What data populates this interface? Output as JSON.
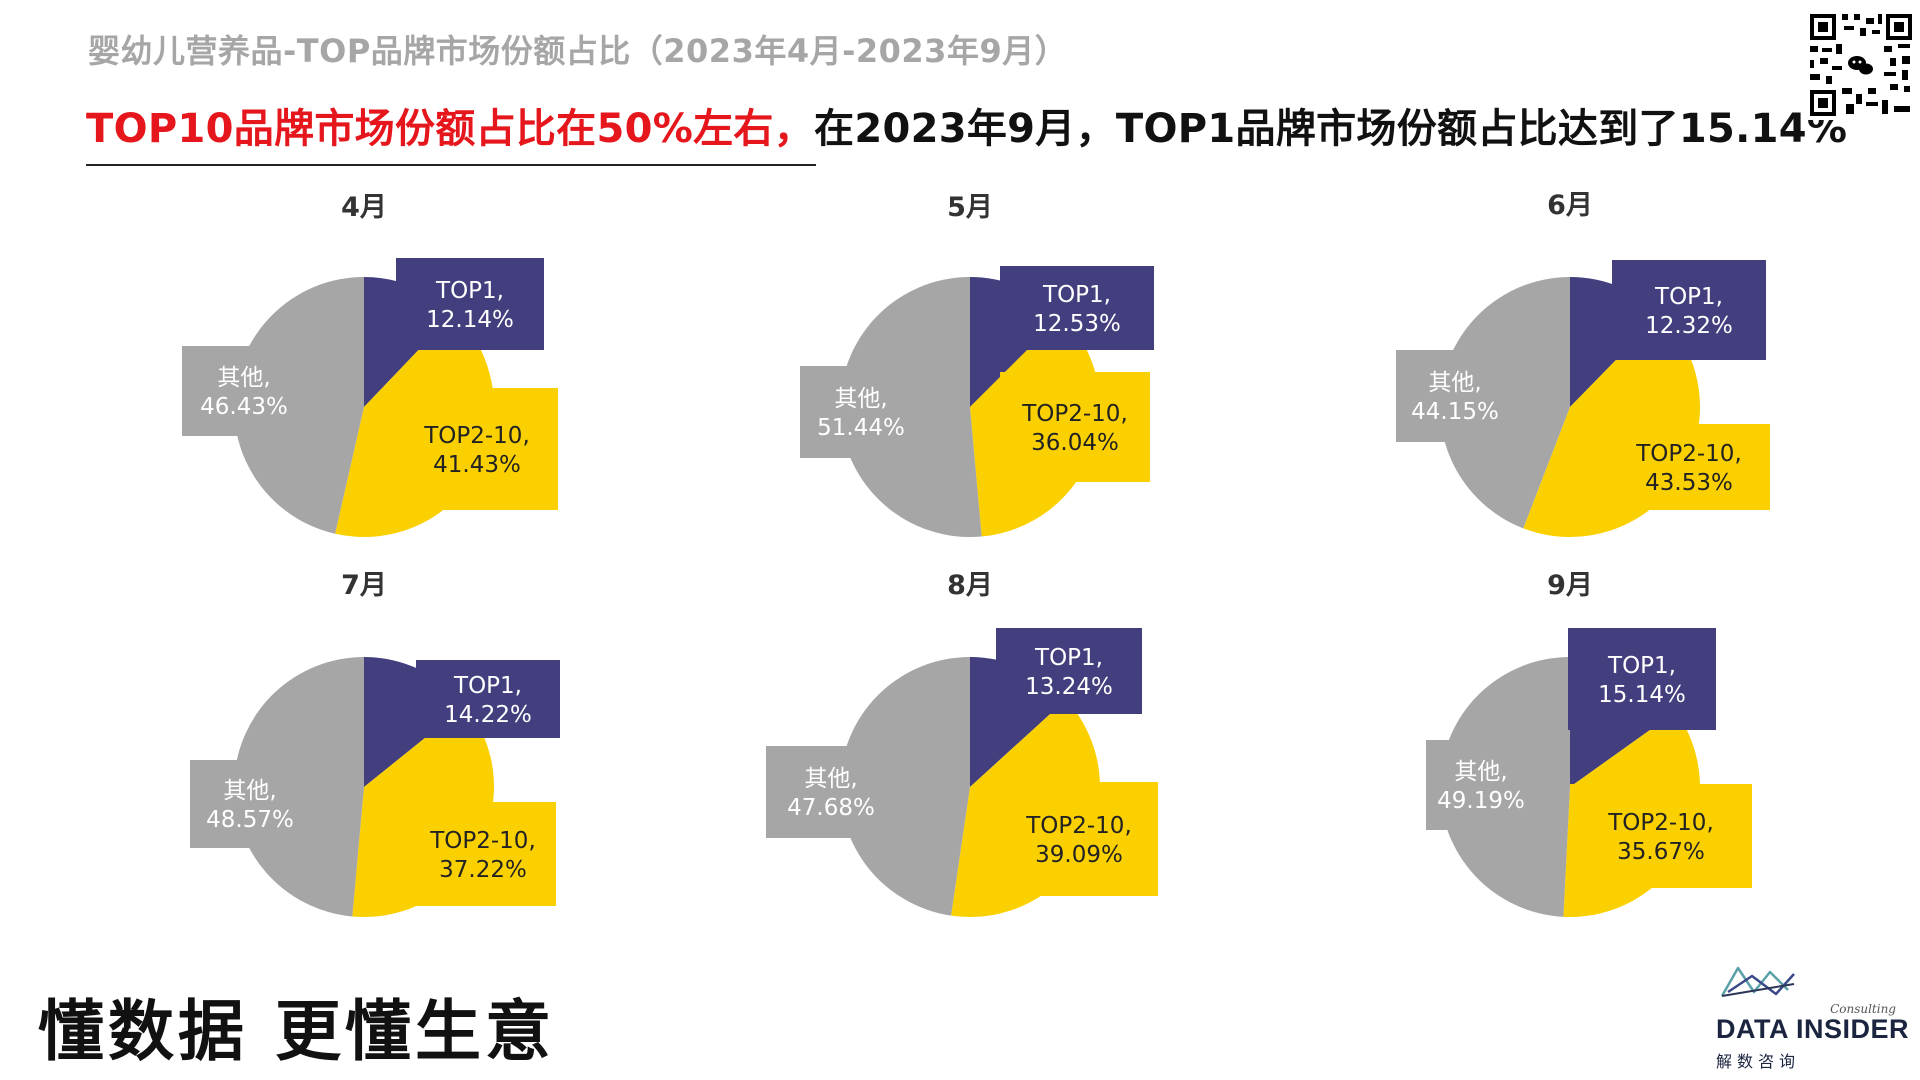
{
  "page": {
    "subtitle": "婴幼儿营养品-TOP品牌市场份额占比（2023年4月-2023年9月）",
    "headline_red": "TOP10品牌市场份额占比在50%左右，",
    "headline_black": "在2023年9月，TOP1品牌市场份额占比达到了15.14%",
    "slogan": "懂数据 更懂生意",
    "logo_brand": "DATA INSIDER",
    "logo_consulting": "Consulting",
    "logo_cn": "解数咨询",
    "qr_icon": "qr-code-icon",
    "logo_icon": "data-insider-logo-icon"
  },
  "colors": {
    "TOP1": "#433f7f",
    "TOP2-10": "#fbd000",
    "其他": "#a6a6a6"
  },
  "chart_data": [
    {
      "type": "pie",
      "title": "4月",
      "series": [
        {
          "name": "TOP1",
          "label": "TOP1,",
          "pct": "12.14%",
          "value": 12.14
        },
        {
          "name": "TOP2-10",
          "label": "TOP2-10,",
          "pct": "41.43%",
          "value": 41.43
        },
        {
          "name": "其他",
          "label": "其他,",
          "pct": "46.43%",
          "value": 46.43
        }
      ]
    },
    {
      "type": "pie",
      "title": "5月",
      "series": [
        {
          "name": "TOP1",
          "label": "TOP1,",
          "pct": "12.53%",
          "value": 12.53
        },
        {
          "name": "TOP2-10",
          "label": "TOP2-10,",
          "pct": "36.04%",
          "value": 36.04
        },
        {
          "name": "其他",
          "label": "其他,",
          "pct": "51.44%",
          "value": 51.44
        }
      ]
    },
    {
      "type": "pie",
      "title": "6月",
      "series": [
        {
          "name": "TOP1",
          "label": "TOP1,",
          "pct": "12.32%",
          "value": 12.32
        },
        {
          "name": "TOP2-10",
          "label": "TOP2-10,",
          "pct": "43.53%",
          "value": 43.53
        },
        {
          "name": "其他",
          "label": "其他,",
          "pct": "44.15%",
          "value": 44.15
        }
      ]
    },
    {
      "type": "pie",
      "title": "7月",
      "series": [
        {
          "name": "TOP1",
          "label": "TOP1,",
          "pct": "14.22%",
          "value": 14.22
        },
        {
          "name": "TOP2-10",
          "label": "TOP2-10,",
          "pct": "37.22%",
          "value": 37.22
        },
        {
          "name": "其他",
          "label": "其他,",
          "pct": "48.57%",
          "value": 48.57
        }
      ]
    },
    {
      "type": "pie",
      "title": "8月",
      "series": [
        {
          "name": "TOP1",
          "label": "TOP1,",
          "pct": "13.24%",
          "value": 13.24
        },
        {
          "name": "TOP2-10",
          "label": "TOP2-10,",
          "pct": "39.09%",
          "value": 39.09
        },
        {
          "name": "其他",
          "label": "其他,",
          "pct": "47.68%",
          "value": 47.68
        }
      ]
    },
    {
      "type": "pie",
      "title": "9月",
      "series": [
        {
          "name": "TOP1",
          "label": "TOP1,",
          "pct": "15.14%",
          "value": 15.14
        },
        {
          "name": "TOP2-10",
          "label": "TOP2-10,",
          "pct": "35.67%",
          "value": 35.67
        },
        {
          "name": "其他",
          "label": "其他,",
          "pct": "49.19%",
          "value": 49.19
        }
      ]
    }
  ]
}
